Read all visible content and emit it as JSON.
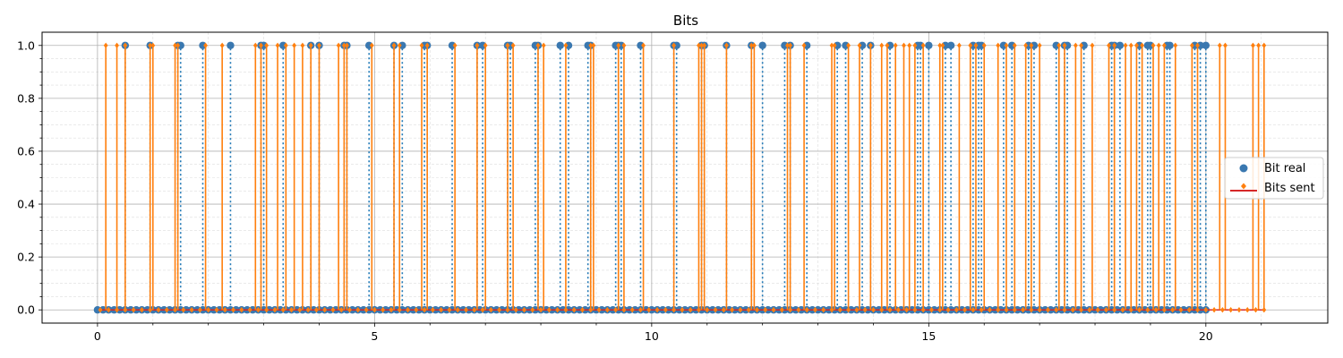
{
  "chart_data": {
    "type": "stem",
    "title": "Bits",
    "xlabel": "",
    "ylabel": "",
    "xlim": [
      -1,
      22.2
    ],
    "ylim": [
      -0.05,
      1.05
    ],
    "xticks": [
      0,
      5,
      10,
      15,
      20
    ],
    "xtick_labels": [
      "0",
      "5",
      "10",
      "15",
      "20"
    ],
    "yticks": [
      0.0,
      0.2,
      0.4,
      0.6,
      0.8,
      1.0
    ],
    "ytick_labels": [
      "0.0",
      "0.2",
      "0.4",
      "0.6",
      "0.8",
      "1.0"
    ],
    "grid": true,
    "minor_grid": true,
    "legend_position": "center-right",
    "series": [
      {
        "name": "Bit real",
        "style": "stem-dotted",
        "marker": "circle",
        "marker_color": "#3a78b0",
        "stem_color": "#1f77b4",
        "baseline_color": "#d62728",
        "x_step": 0.1,
        "x_start": 0.0,
        "ones": [
          0.5,
          0.95,
          1.45,
          1.5,
          1.9,
          2.4,
          2.95,
          3.0,
          3.35,
          3.85,
          4.0,
          4.45,
          4.5,
          4.9,
          5.35,
          5.5,
          5.9,
          5.95,
          6.4,
          6.85,
          6.95,
          7.4,
          7.45,
          7.9,
          7.95,
          8.35,
          8.5,
          8.85,
          8.9,
          9.35,
          9.4,
          9.45,
          9.8,
          10.4,
          10.45,
          10.9,
          10.95,
          11.35,
          11.8,
          12.0,
          12.4,
          12.5,
          12.8,
          13.35,
          13.5,
          13.8,
          13.95,
          14.3,
          14.8,
          14.85,
          15.0,
          15.3,
          15.4,
          15.8,
          15.9,
          15.95,
          16.35,
          16.5,
          16.8,
          16.9,
          17.3,
          17.45,
          17.5,
          17.8,
          18.3,
          18.35,
          18.45,
          18.8,
          18.95,
          19.0,
          19.3,
          19.35,
          19.8,
          19.9,
          20.0
        ],
        "x_max": 20.0
      },
      {
        "name": "Bits sent",
        "style": "stem-solid",
        "marker": "diamond",
        "marker_color": "#ff7f0e",
        "stem_color": "#ff7f0e",
        "baseline_color": "#d62728",
        "x_step": 0.15,
        "x_start": 0.05,
        "ones": [
          0.15,
          0.35,
          0.5,
          0.95,
          1.0,
          1.4,
          1.45,
          1.95,
          2.25,
          2.85,
          2.95,
          3.05,
          3.25,
          3.4,
          3.55,
          3.7,
          3.85,
          4.0,
          4.35,
          4.45,
          4.5,
          4.95,
          5.35,
          5.45,
          5.85,
          5.95,
          6.45,
          6.85,
          7.0,
          7.4,
          7.5,
          7.95,
          8.05,
          8.45,
          8.9,
          8.95,
          9.4,
          9.5,
          9.85,
          10.4,
          10.85,
          10.9,
          10.95,
          11.35,
          11.8,
          11.85,
          12.45,
          12.5,
          12.75,
          13.25,
          13.3,
          13.55,
          13.75,
          13.95,
          14.15,
          14.25,
          14.4,
          14.55,
          14.65,
          14.75,
          14.9,
          15.2,
          15.25,
          15.55,
          15.75,
          15.85,
          16.0,
          16.25,
          16.4,
          16.55,
          16.75,
          16.85,
          17.0,
          17.35,
          17.45,
          17.65,
          17.75,
          17.95,
          18.25,
          18.35,
          18.55,
          18.65,
          18.75,
          18.85,
          19.05,
          19.15,
          19.25,
          19.45,
          19.75,
          19.85,
          20.25,
          20.35,
          20.85,
          20.95,
          21.05
        ],
        "x_max": 21.05
      }
    ]
  }
}
